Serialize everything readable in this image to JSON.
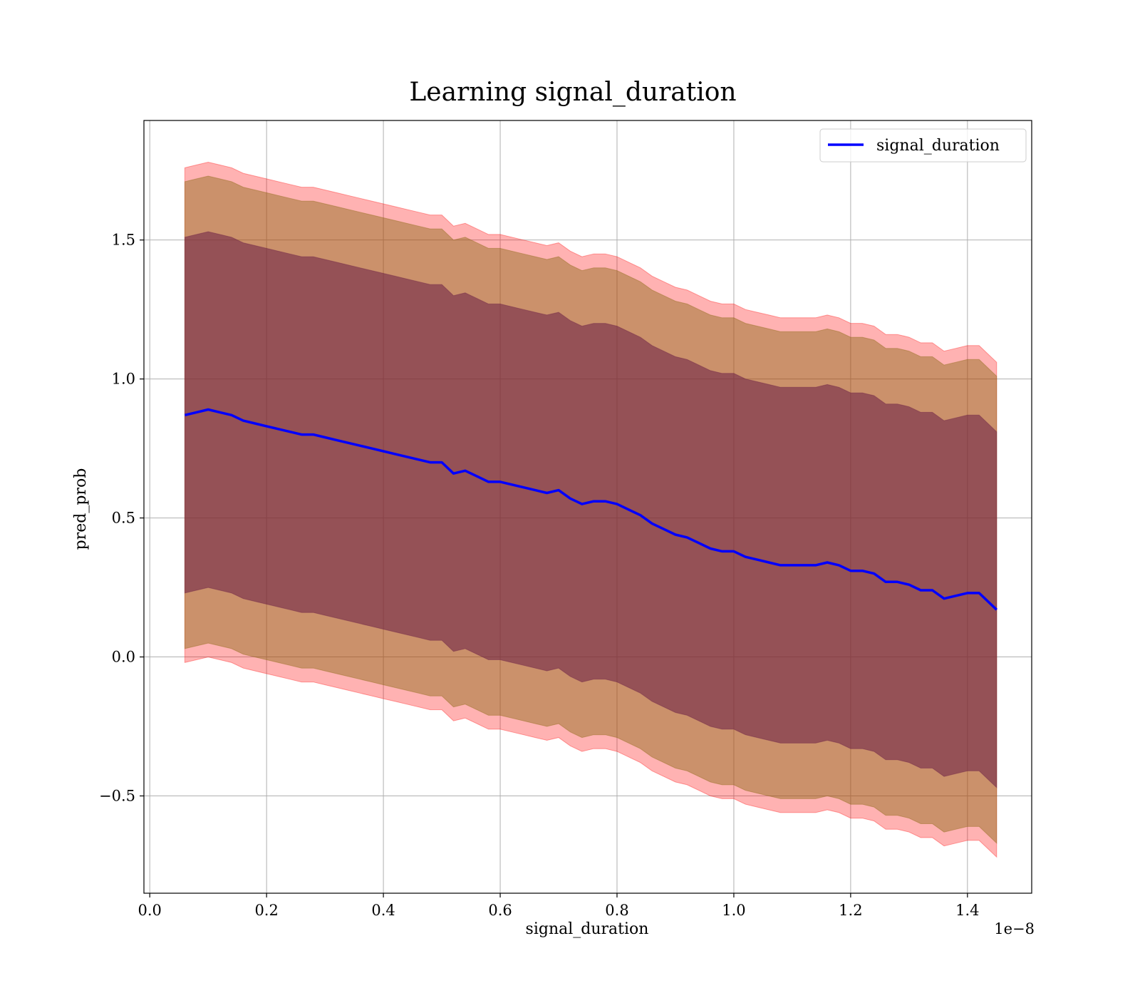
{
  "chart_data": {
    "type": "line",
    "title": "Learning signal_duration",
    "xlabel": "signal_duration",
    "ylabel": "pred_prob",
    "x_offset_label": "1e−8",
    "xlim": [
      -0.01,
      1.51
    ],
    "ylim": [
      -0.85,
      1.93
    ],
    "x_ticks": [
      0.0,
      0.2,
      0.4,
      0.6,
      0.8,
      1.0,
      1.2,
      1.4
    ],
    "x_tick_labels": [
      "0.0",
      "0.2",
      "0.4",
      "0.6",
      "0.8",
      "1.0",
      "1.2",
      "1.4"
    ],
    "y_ticks": [
      -0.5,
      0.0,
      0.5,
      1.0,
      1.5
    ],
    "y_tick_labels": [
      "−0.5",
      "0.0",
      "0.5",
      "1.0",
      "1.5"
    ],
    "grid": true,
    "legend_position": "top-right",
    "colors": {
      "line": "#0000ff",
      "band_outer": "#ff0000",
      "band_middle": "#8b6914",
      "band_inner": "#6a1e45"
    },
    "series": [
      {
        "name": "signal_duration",
        "x": [
          0.06,
          0.08,
          0.1,
          0.12,
          0.14,
          0.16,
          0.18,
          0.2,
          0.22,
          0.24,
          0.26,
          0.28,
          0.3,
          0.32,
          0.34,
          0.36,
          0.38,
          0.4,
          0.42,
          0.44,
          0.46,
          0.48,
          0.5,
          0.52,
          0.54,
          0.56,
          0.58,
          0.6,
          0.62,
          0.64,
          0.66,
          0.68,
          0.7,
          0.72,
          0.74,
          0.76,
          0.78,
          0.8,
          0.82,
          0.84,
          0.86,
          0.88,
          0.9,
          0.92,
          0.94,
          0.96,
          0.98,
          1.0,
          1.02,
          1.04,
          1.06,
          1.08,
          1.1,
          1.12,
          1.14,
          1.16,
          1.18,
          1.2,
          1.22,
          1.24,
          1.26,
          1.28,
          1.3,
          1.32,
          1.34,
          1.36,
          1.38,
          1.4,
          1.42,
          1.45
        ],
        "y": [
          0.87,
          0.88,
          0.89,
          0.88,
          0.87,
          0.85,
          0.84,
          0.83,
          0.82,
          0.81,
          0.8,
          0.8,
          0.79,
          0.78,
          0.77,
          0.76,
          0.75,
          0.74,
          0.73,
          0.72,
          0.71,
          0.7,
          0.7,
          0.66,
          0.67,
          0.65,
          0.63,
          0.63,
          0.62,
          0.61,
          0.6,
          0.59,
          0.6,
          0.57,
          0.55,
          0.56,
          0.56,
          0.55,
          0.53,
          0.51,
          0.48,
          0.46,
          0.44,
          0.43,
          0.41,
          0.39,
          0.38,
          0.38,
          0.36,
          0.35,
          0.34,
          0.33,
          0.33,
          0.33,
          0.33,
          0.34,
          0.33,
          0.31,
          0.31,
          0.3,
          0.27,
          0.27,
          0.26,
          0.24,
          0.24,
          0.21,
          0.22,
          0.23,
          0.23,
          0.17
        ],
        "band_inner_halfwidth": [
          0.64,
          0.64,
          0.64,
          0.64,
          0.64,
          0.64,
          0.64,
          0.64,
          0.64,
          0.64,
          0.64,
          0.64,
          0.64,
          0.64,
          0.64,
          0.64,
          0.64,
          0.64,
          0.64,
          0.64,
          0.64,
          0.64,
          0.64,
          0.64,
          0.64,
          0.64,
          0.64,
          0.64,
          0.64,
          0.64,
          0.64,
          0.64,
          0.64,
          0.64,
          0.64,
          0.64,
          0.64,
          0.64,
          0.64,
          0.64,
          0.64,
          0.64,
          0.64,
          0.64,
          0.64,
          0.64,
          0.64,
          0.64,
          0.64,
          0.64,
          0.64,
          0.64,
          0.64,
          0.64,
          0.64,
          0.64,
          0.64,
          0.64,
          0.64,
          0.64,
          0.64,
          0.64,
          0.64,
          0.64,
          0.64,
          0.64,
          0.64,
          0.64,
          0.64,
          0.64
        ],
        "band_middle_halfwidth": [
          0.84,
          0.84,
          0.84,
          0.84,
          0.84,
          0.84,
          0.84,
          0.84,
          0.84,
          0.84,
          0.84,
          0.84,
          0.84,
          0.84,
          0.84,
          0.84,
          0.84,
          0.84,
          0.84,
          0.84,
          0.84,
          0.84,
          0.84,
          0.84,
          0.84,
          0.84,
          0.84,
          0.84,
          0.84,
          0.84,
          0.84,
          0.84,
          0.84,
          0.84,
          0.84,
          0.84,
          0.84,
          0.84,
          0.84,
          0.84,
          0.84,
          0.84,
          0.84,
          0.84,
          0.84,
          0.84,
          0.84,
          0.84,
          0.84,
          0.84,
          0.84,
          0.84,
          0.84,
          0.84,
          0.84,
          0.84,
          0.84,
          0.84,
          0.84,
          0.84,
          0.84,
          0.84,
          0.84,
          0.84,
          0.84,
          0.84,
          0.84,
          0.84,
          0.84,
          0.84
        ],
        "band_outer_halfwidth": [
          0.89,
          0.89,
          0.89,
          0.89,
          0.89,
          0.89,
          0.89,
          0.89,
          0.89,
          0.89,
          0.89,
          0.89,
          0.89,
          0.89,
          0.89,
          0.89,
          0.89,
          0.89,
          0.89,
          0.89,
          0.89,
          0.89,
          0.89,
          0.89,
          0.89,
          0.89,
          0.89,
          0.89,
          0.89,
          0.89,
          0.89,
          0.89,
          0.89,
          0.89,
          0.89,
          0.89,
          0.89,
          0.89,
          0.89,
          0.89,
          0.89,
          0.89,
          0.89,
          0.89,
          0.89,
          0.89,
          0.89,
          0.89,
          0.89,
          0.89,
          0.89,
          0.89,
          0.89,
          0.89,
          0.89,
          0.89,
          0.89,
          0.89,
          0.89,
          0.89,
          0.89,
          0.89,
          0.89,
          0.89,
          0.89,
          0.89,
          0.89,
          0.89,
          0.89,
          0.89
        ]
      }
    ]
  }
}
